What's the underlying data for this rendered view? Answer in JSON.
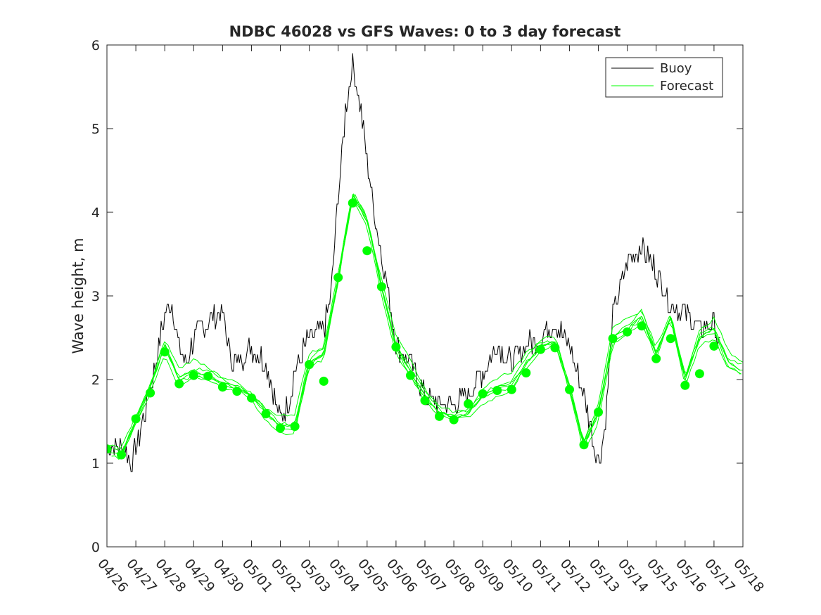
{
  "chart_data": {
    "type": "line",
    "title": "NDBC 46028 vs GFS Waves: 0 to 3 day forecast",
    "xlabel": "",
    "ylabel": "Wave height, m",
    "xlim": [
      "04/26",
      "05/18"
    ],
    "ylim": [
      0,
      6
    ],
    "x_tick_labels": [
      "04/26",
      "04/27",
      "04/28",
      "04/29",
      "04/30",
      "05/01",
      "05/02",
      "05/03",
      "05/04",
      "05/05",
      "05/06",
      "05/07",
      "05/08",
      "05/09",
      "05/10",
      "05/11",
      "05/12",
      "05/13",
      "05/14",
      "05/15",
      "05/16",
      "05/17",
      "05/18"
    ],
    "y_tick_labels": [
      "0",
      "1",
      "2",
      "3",
      "4",
      "5",
      "6"
    ],
    "grid": false,
    "legend": {
      "position": "top-right",
      "entries": [
        "Buoy",
        "Forecast"
      ]
    },
    "colors": {
      "buoy": "#000000",
      "forecast": "#00ff00",
      "axis": "#262626"
    },
    "series": [
      {
        "name": "Buoy",
        "x": [
          "04/26 00:00",
          "04/26 12:00",
          "04/26 21:00",
          "04/27 06:00",
          "04/27 12:00",
          "04/27 18:00",
          "04/28 00:00",
          "04/28 06:00",
          "04/28 12:00",
          "04/28 18:00",
          "04/29 00:00",
          "04/29 12:00",
          "04/30 00:00",
          "04/30 06:00",
          "04/30 12:00",
          "05/01 00:00",
          "05/01 12:00",
          "05/02 00:00",
          "05/02 06:00",
          "05/02 12:00",
          "05/03 00:00",
          "05/03 12:00",
          "05/03 18:00",
          "05/04 00:00",
          "05/04 06:00",
          "05/04 12:00",
          "05/04 18:00",
          "05/05 00:00",
          "05/05 06:00",
          "05/05 12:00",
          "05/05 18:00",
          "05/06 00:00",
          "05/06 12:00",
          "05/07 00:00",
          "05/07 12:00",
          "05/08 00:00",
          "05/08 12:00",
          "05/09 00:00",
          "05/09 12:00",
          "05/10 00:00",
          "05/10 12:00",
          "05/11 00:00",
          "05/11 12:00",
          "05/12 00:00",
          "05/12 12:00",
          "05/12 21:00",
          "05/13 00:00",
          "05/13 06:00",
          "05/13 12:00",
          "05/14 00:00",
          "05/14 12:00",
          "05/15 00:00",
          "05/15 12:00",
          "05/16 00:00",
          "05/16 12:00",
          "05/17 00:00",
          "05/17 06:00"
        ],
        "y": [
          1.2,
          1.2,
          1.0,
          1.5,
          1.9,
          2.3,
          2.8,
          2.9,
          2.4,
          2.2,
          2.5,
          2.7,
          2.8,
          2.3,
          2.2,
          2.4,
          2.2,
          1.5,
          1.7,
          2.1,
          2.5,
          2.6,
          3.0,
          4.2,
          5.2,
          5.8,
          5.3,
          4.6,
          4.0,
          3.5,
          3.0,
          2.4,
          2.2,
          1.8,
          1.7,
          1.7,
          1.8,
          2.1,
          2.4,
          2.2,
          2.4,
          2.5,
          2.7,
          2.4,
          1.8,
          1.2,
          1.0,
          1.5,
          2.8,
          3.4,
          3.6,
          3.3,
          2.9,
          2.8,
          2.6,
          2.7,
          2.3
        ]
      },
      {
        "name": "Forecast",
        "x": [
          "04/26 00:00",
          "04/26 12:00",
          "04/27 00:00",
          "04/27 12:00",
          "04/28 00:00",
          "04/28 12:00",
          "04/29 00:00",
          "04/29 12:00",
          "04/30 00:00",
          "04/30 12:00",
          "05/01 00:00",
          "05/01 12:00",
          "05/02 00:00",
          "05/02 12:00",
          "05/03 00:00",
          "05/03 12:00",
          "05/04 00:00",
          "05/04 12:00",
          "05/05 00:00",
          "05/05 12:00",
          "05/06 00:00",
          "05/06 12:00",
          "05/07 00:00",
          "05/07 12:00",
          "05/08 00:00",
          "05/08 12:00",
          "05/09 00:00",
          "05/09 12:00",
          "05/10 00:00",
          "05/10 12:00",
          "05/11 00:00",
          "05/11 12:00",
          "05/12 00:00",
          "05/12 12:00",
          "05/13 00:00",
          "05/13 12:00",
          "05/14 00:00",
          "05/14 12:00",
          "05/15 00:00",
          "05/15 12:00",
          "05/16 00:00",
          "05/16 12:00",
          "05/17 00:00",
          "05/17 12:00",
          "05/18 00:00"
        ],
        "y": [
          1.15,
          1.1,
          1.5,
          1.9,
          2.4,
          2.0,
          2.1,
          2.05,
          1.95,
          1.9,
          1.8,
          1.6,
          1.45,
          1.45,
          2.2,
          2.3,
          3.2,
          4.2,
          3.9,
          3.1,
          2.4,
          2.1,
          1.8,
          1.6,
          1.55,
          1.6,
          1.8,
          1.9,
          1.95,
          2.2,
          2.4,
          2.45,
          1.9,
          1.2,
          1.6,
          2.5,
          2.6,
          2.75,
          2.3,
          2.75,
          2.0,
          2.5,
          2.6,
          2.2,
          2.1
        ]
      },
      {
        "name": "Forecast daily points",
        "x": [
          "04/26 00:00",
          "04/26 12:00",
          "04/27 00:00",
          "04/27 12:00",
          "04/28 00:00",
          "04/28 12:00",
          "04/29 00:00",
          "04/29 12:00",
          "04/30 00:00",
          "04/30 12:00",
          "05/01 00:00",
          "05/01 12:00",
          "05/02 00:00",
          "05/02 12:00",
          "05/03 00:00",
          "05/03 12:00",
          "05/04 00:00",
          "05/04 12:00",
          "05/05 00:00",
          "05/05 12:00",
          "05/06 00:00",
          "05/06 12:00",
          "05/07 00:00",
          "05/07 12:00",
          "05/08 00:00",
          "05/08 12:00",
          "05/09 00:00",
          "05/09 12:00",
          "05/10 00:00",
          "05/10 12:00",
          "05/11 00:00",
          "05/11 12:00",
          "05/12 00:00",
          "05/12 12:00",
          "05/13 00:00",
          "05/13 12:00",
          "05/14 00:00",
          "05/14 12:00",
          "05/15 00:00",
          "05/15 12:00",
          "05/16 00:00",
          "05/16 12:00",
          "05/17 00:00"
        ],
        "y": [
          1.17,
          1.1,
          1.53,
          1.84,
          2.33,
          1.95,
          2.05,
          2.04,
          1.91,
          1.86,
          1.78,
          1.59,
          1.42,
          1.44,
          2.18,
          1.98,
          3.22,
          4.11,
          3.54,
          3.11,
          2.39,
          2.05,
          1.75,
          1.56,
          1.52,
          1.71,
          1.83,
          1.87,
          1.88,
          2.08,
          2.36,
          2.38,
          1.88,
          1.22,
          1.61,
          2.49,
          2.57,
          2.64,
          2.25,
          2.49,
          1.93,
          2.07,
          2.4
        ]
      }
    ]
  }
}
